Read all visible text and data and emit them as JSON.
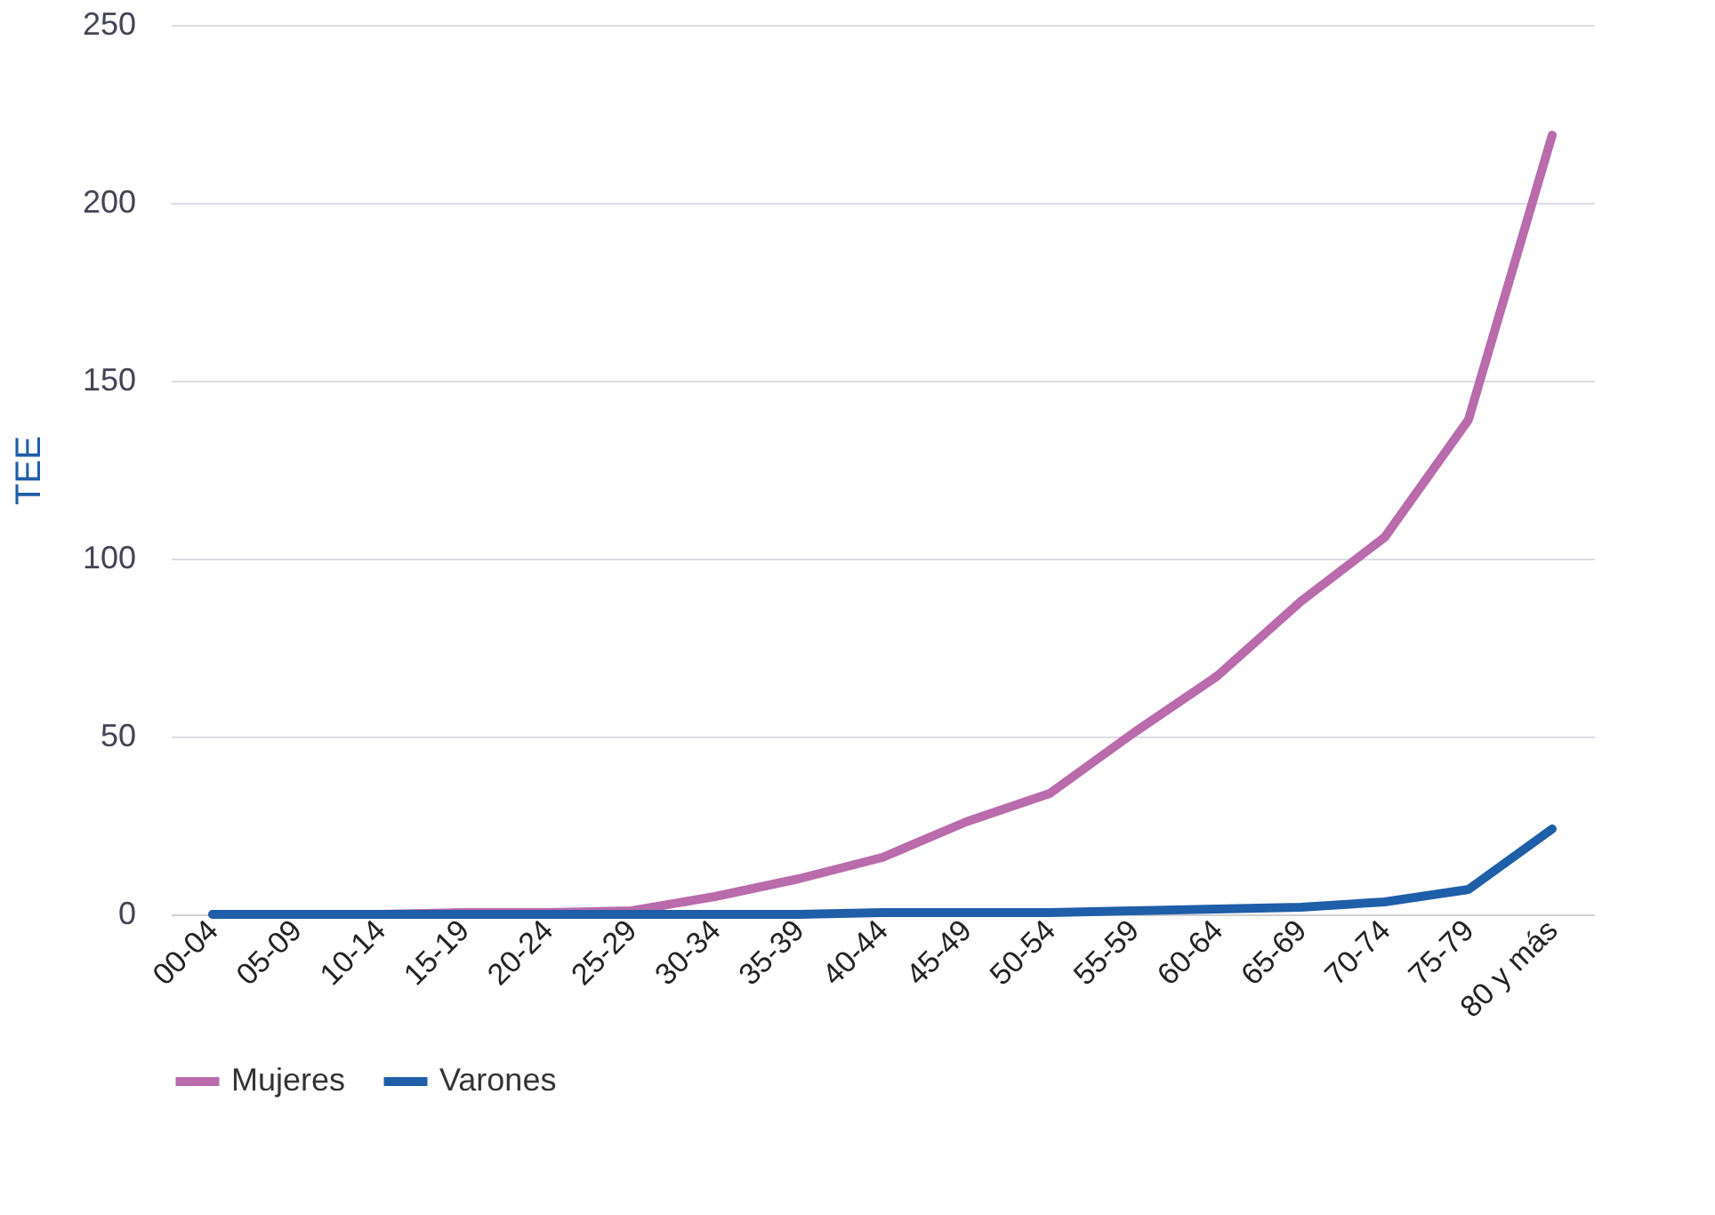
{
  "chart_data": {
    "type": "line",
    "ylabel": "TEE",
    "categories": [
      "00-04",
      "05-09",
      "10-14",
      "15-19",
      "20-24",
      "25-29",
      "30-34",
      "35-39",
      "40-44",
      "45-49",
      "50-54",
      "55-59",
      "60-64",
      "65-69",
      "70-74",
      "75-79",
      "80 y más"
    ],
    "series": [
      {
        "name": "Mujeres",
        "color": "#b96bab",
        "values": [
          0,
          0,
          0,
          0.5,
          0.5,
          1,
          5,
          10,
          16,
          26,
          34,
          51,
          67,
          88,
          106,
          139,
          219
        ]
      },
      {
        "name": "Varones",
        "color": "#1f5ea8",
        "values": [
          0,
          0,
          0,
          0,
          0,
          0,
          0,
          0,
          0.5,
          0.5,
          0.5,
          1,
          1.5,
          2,
          3.5,
          7,
          24
        ]
      }
    ],
    "ylim": [
      0,
      250
    ],
    "yticks": [
      0,
      50,
      100,
      150,
      200,
      250
    ],
    "grid": "y",
    "legend": "bottom",
    "marker": "none",
    "line_style": "solid"
  }
}
